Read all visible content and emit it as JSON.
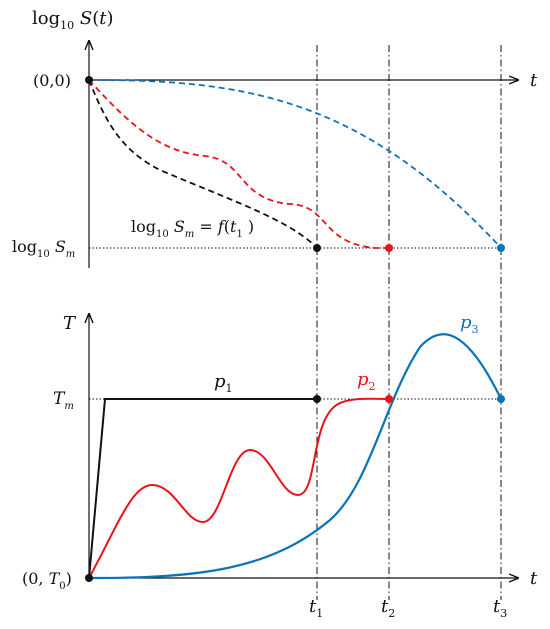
{
  "top_panel": {
    "y_axis_label": "log₁₀ S(t)",
    "x_axis_label": "t",
    "origin_label": "(0,0)",
    "level_label": "log₁₀ S",
    "level_subscript": "m",
    "annotation": "log₁₀ S = f(t₁ )",
    "annotation_parts": [
      "log",
      "10",
      " S",
      "m",
      " = f(t",
      "1",
      " )"
    ]
  },
  "bottom_panel": {
    "y_axis_label": "T",
    "x_axis_label": "t",
    "origin_label": "(0, T",
    "origin_subscript": "0",
    "level_label": "T",
    "level_subscript": "m",
    "curves": [
      {
        "name": "p₁",
        "letter": "p",
        "sub": "1",
        "color": "#111111"
      },
      {
        "name": "p₂",
        "letter": "p",
        "sub": "2",
        "color": "#e8141a"
      },
      {
        "name": "p₃",
        "letter": "p",
        "sub": "3",
        "color": "#0b73b8"
      }
    ]
  },
  "time_marks": [
    {
      "letter": "t",
      "sub": "1"
    },
    {
      "letter": "t",
      "sub": "2"
    },
    {
      "letter": "t",
      "sub": "3"
    }
  ],
  "colors": {
    "black": "#111111",
    "red": "#e8141a",
    "blue": "#0b73b8"
  }
}
